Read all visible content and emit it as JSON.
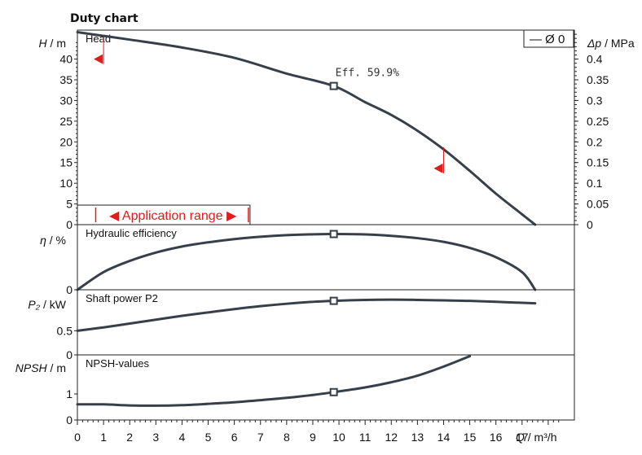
{
  "title": "Duty chart",
  "colors": {
    "curve": "#37404a",
    "frame": "#222222",
    "accent": "#e21b1b"
  },
  "x_axis": {
    "label_symbol": "Q",
    "label_unit": " / m³/h",
    "min": 0,
    "max": 19,
    "ticks": [
      0,
      1,
      2,
      3,
      4,
      5,
      6,
      7,
      8,
      9,
      10,
      11,
      12,
      13,
      14,
      15,
      16,
      17
    ]
  },
  "legend": {
    "label": "— Ø 0"
  },
  "application_range": {
    "label": "◀ Application range ▶",
    "from": 0.7,
    "to": 6.6
  },
  "chart_data": [
    {
      "type": "line",
      "panel": "Head",
      "ylabel_symbol": "H",
      "ylabel_unit": " / m",
      "ylim": [
        0,
        47
      ],
      "yticks": [
        0,
        5,
        10,
        15,
        20,
        25,
        30,
        35,
        40
      ],
      "y2label_symbol": "Δp",
      "y2label_unit": " / MPa",
      "y2lim": [
        0,
        0.47
      ],
      "y2ticks": [
        "0",
        "0.05",
        "0.1",
        "0.15",
        "0.2",
        "0.25",
        "0.3",
        "0.35",
        "0.4"
      ],
      "series": [
        {
          "x": [
            0,
            2,
            4,
            6,
            8,
            9.8,
            11,
            12,
            13,
            14,
            15,
            16,
            17,
            17.5
          ],
          "y": [
            46.5,
            44.7,
            42.8,
            40.3,
            36.5,
            33.5,
            29.6,
            26.5,
            22.7,
            18.2,
            13,
            7.5,
            2.5,
            0
          ]
        }
      ],
      "operating_point": {
        "x": 9.8,
        "y": 33.5,
        "label": "Eff. 59.9%"
      },
      "limit_markers": [
        {
          "x": 1.0,
          "y": 40
        },
        {
          "x": 14.0,
          "y": 13.6
        }
      ]
    },
    {
      "type": "line",
      "panel": "Hydraulic efficiency",
      "ylabel_symbol": "η",
      "ylabel_unit": " / %",
      "ylim": [
        0,
        70
      ],
      "yticks": [
        "0"
      ],
      "series": [
        {
          "x": [
            0,
            1,
            2,
            3,
            4,
            5,
            6,
            7,
            8,
            9,
            9.8,
            11,
            12,
            13,
            14,
            15,
            16,
            17,
            17.5
          ],
          "y": [
            0,
            19,
            31,
            40,
            46.5,
            51,
            54.5,
            57,
            58.7,
            59.6,
            59.9,
            59.5,
            58,
            55.5,
            51.5,
            45,
            35,
            19,
            0
          ]
        }
      ],
      "operating_point": {
        "x": 9.8,
        "y": 59.9
      }
    },
    {
      "type": "line",
      "panel": "Shaft power P2",
      "ylabel_symbol": "P₂",
      "ylabel_unit": " / kW",
      "ylim": [
        0,
        1.35
      ],
      "yticks": [
        "0",
        "0.5"
      ],
      "series": [
        {
          "x": [
            0,
            1,
            2,
            3,
            4,
            5,
            6,
            7,
            8,
            9,
            9.8,
            11,
            12,
            13,
            14,
            15,
            16,
            17,
            17.5
          ],
          "y": [
            0.5,
            0.57,
            0.65,
            0.73,
            0.81,
            0.88,
            0.95,
            1.01,
            1.06,
            1.1,
            1.12,
            1.14,
            1.145,
            1.14,
            1.13,
            1.12,
            1.1,
            1.08,
            1.07
          ]
        }
      ],
      "operating_point": {
        "x": 9.8,
        "y": 1.12
      }
    },
    {
      "type": "line",
      "panel": "NPSH-values",
      "ylabel_symbol": "NPSH",
      "ylabel_unit": " / m",
      "ylim": [
        0,
        2.5
      ],
      "yticks": [
        "0",
        "1"
      ],
      "series": [
        {
          "x": [
            0,
            1,
            2,
            3,
            4,
            5,
            6,
            7,
            8,
            9,
            9.8,
            11,
            12,
            13,
            14,
            15
          ],
          "y": [
            0.6,
            0.6,
            0.56,
            0.55,
            0.57,
            0.62,
            0.68,
            0.76,
            0.85,
            0.96,
            1.07,
            1.25,
            1.45,
            1.7,
            2.05,
            2.45
          ]
        }
      ],
      "operating_point": {
        "x": 9.8,
        "y": 1.07
      }
    }
  ]
}
